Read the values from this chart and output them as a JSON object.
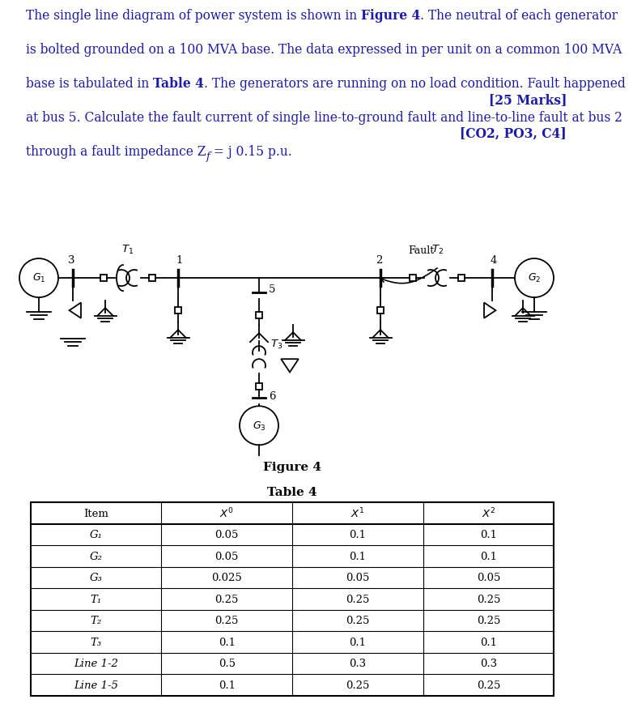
{
  "bg_color": "#ffffff",
  "text_color": "#1a1aab",
  "diagram_color": "#1a1010",
  "marks": "[25 Marks]",
  "co": "[CO2, PO3, C4]",
  "fig_label": "Figure 4",
  "table_label": "Table 4",
  "table_rows": [
    [
      "G₁",
      "0.05",
      "0.1",
      "0.1"
    ],
    [
      "G₂",
      "0.05",
      "0.1",
      "0.1"
    ],
    [
      "G₃",
      "0.025",
      "0.05",
      "0.05"
    ],
    [
      "T₁",
      "0.25",
      "0.25",
      "0.25"
    ],
    [
      "T₂",
      "0.25",
      "0.25",
      "0.25"
    ],
    [
      "T₃",
      "0.1",
      "0.1",
      "0.1"
    ],
    [
      "Line 1-2",
      "0.5",
      "0.3",
      "0.3"
    ],
    [
      "Line 1-5",
      "0.1",
      "0.25",
      "0.25"
    ]
  ],
  "para_lines": [
    [
      [
        "The single line diagram of power system is shown in ",
        false
      ],
      [
        "Figure 4",
        true
      ],
      [
        ". The neutral of each generator",
        false
      ]
    ],
    [
      [
        "is bolted grounded on a 100 MVA base. The data expressed in per unit on a common 100 MVA",
        false
      ]
    ],
    [
      [
        "base is tabulated in ",
        false
      ],
      [
        "Table 4",
        true
      ],
      [
        ". The generators are running on no load condition. Fault happened",
        false
      ]
    ],
    [
      [
        "at bus 5. Calculate the fault current of single line-to-ground fault and line-to-line fault at bus 2",
        false
      ]
    ],
    [
      [
        "through a fault impedance Z",
        false
      ],
      [
        "f_sub",
        false
      ],
      [
        " = j 0.15 p.u.",
        false
      ]
    ]
  ]
}
